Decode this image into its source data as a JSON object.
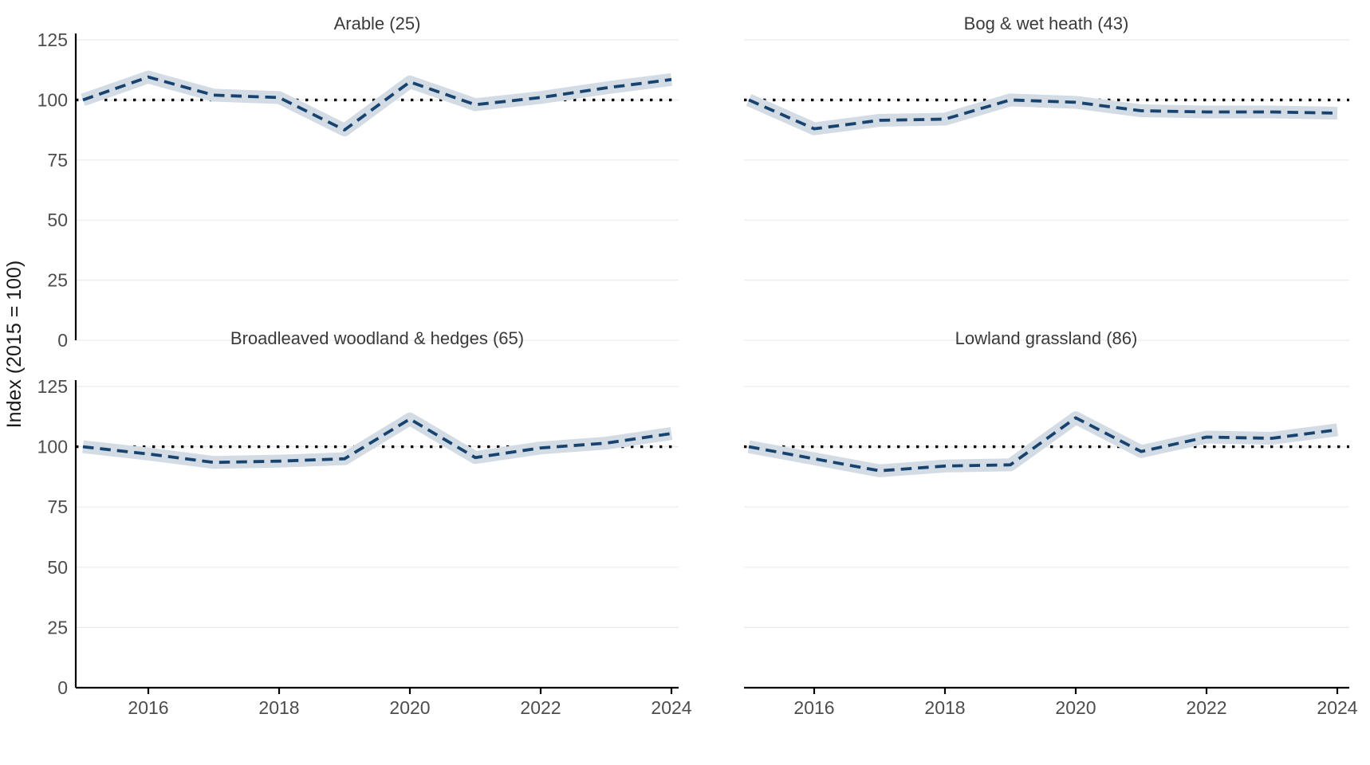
{
  "figure": {
    "ylabel": "Index (2015 = 100)",
    "background": "#ffffff",
    "colors": {
      "line": "#17436e",
      "band": "#d3dbe4",
      "reference_line": "#000000",
      "gridline": "#ebebeb",
      "axis": "#000000",
      "title_text": "#3a3a3a",
      "tick_text": "#4d4d4d"
    }
  },
  "chart_data": [
    {
      "type": "line",
      "title": "Arable (25)",
      "x": [
        2015,
        2016,
        2017,
        2018,
        2019,
        2020,
        2021,
        2022,
        2023,
        2024
      ],
      "values": [
        100,
        109.5,
        102,
        101,
        87.5,
        107.5,
        98,
        101,
        105,
        108.5
      ],
      "band_halfwidth": 2,
      "reference_line": 100,
      "ylim": [
        0,
        125
      ],
      "yticks": [
        0,
        25,
        50,
        75,
        100,
        125
      ],
      "xticks": [
        2016,
        2018,
        2020,
        2022,
        2024
      ],
      "grid": "horizontal-only",
      "legend": "none"
    },
    {
      "type": "line",
      "title": "Bog & wet heath (43)",
      "x": [
        2015,
        2016,
        2017,
        2018,
        2019,
        2020,
        2021,
        2022,
        2023,
        2024
      ],
      "values": [
        100,
        88,
        91.5,
        92,
        100,
        99,
        95.5,
        95,
        95,
        94.5
      ],
      "band_halfwidth": 2,
      "reference_line": 100,
      "ylim": [
        0,
        125
      ],
      "yticks": [
        0,
        25,
        50,
        75,
        100,
        125
      ],
      "xticks": [
        2016,
        2018,
        2020,
        2022,
        2024
      ],
      "grid": "horizontal-only",
      "legend": "none"
    },
    {
      "type": "line",
      "title": "Broadleaved woodland & hedges (65)",
      "x": [
        2015,
        2016,
        2017,
        2018,
        2019,
        2020,
        2021,
        2022,
        2023,
        2024
      ],
      "values": [
        100,
        97,
        93.5,
        94,
        95,
        111.5,
        95.5,
        99.5,
        101.5,
        105.5
      ],
      "band_halfwidth": 2,
      "reference_line": 100,
      "ylim": [
        0,
        125
      ],
      "yticks": [
        0,
        25,
        50,
        75,
        100,
        125
      ],
      "xticks": [
        2016,
        2018,
        2020,
        2022,
        2024
      ],
      "grid": "horizontal-only",
      "legend": "none"
    },
    {
      "type": "line",
      "title": "Lowland grassland (86)",
      "x": [
        2015,
        2016,
        2017,
        2018,
        2019,
        2020,
        2021,
        2022,
        2023,
        2024
      ],
      "values": [
        100,
        95,
        90,
        92,
        92.5,
        112,
        98,
        104,
        103.5,
        107
      ],
      "band_halfwidth": 2,
      "reference_line": 100,
      "ylim": [
        0,
        125
      ],
      "yticks": [
        0,
        25,
        50,
        75,
        100,
        125
      ],
      "xticks": [
        2016,
        2018,
        2020,
        2022,
        2024
      ],
      "grid": "horizontal-only",
      "legend": "none"
    }
  ]
}
